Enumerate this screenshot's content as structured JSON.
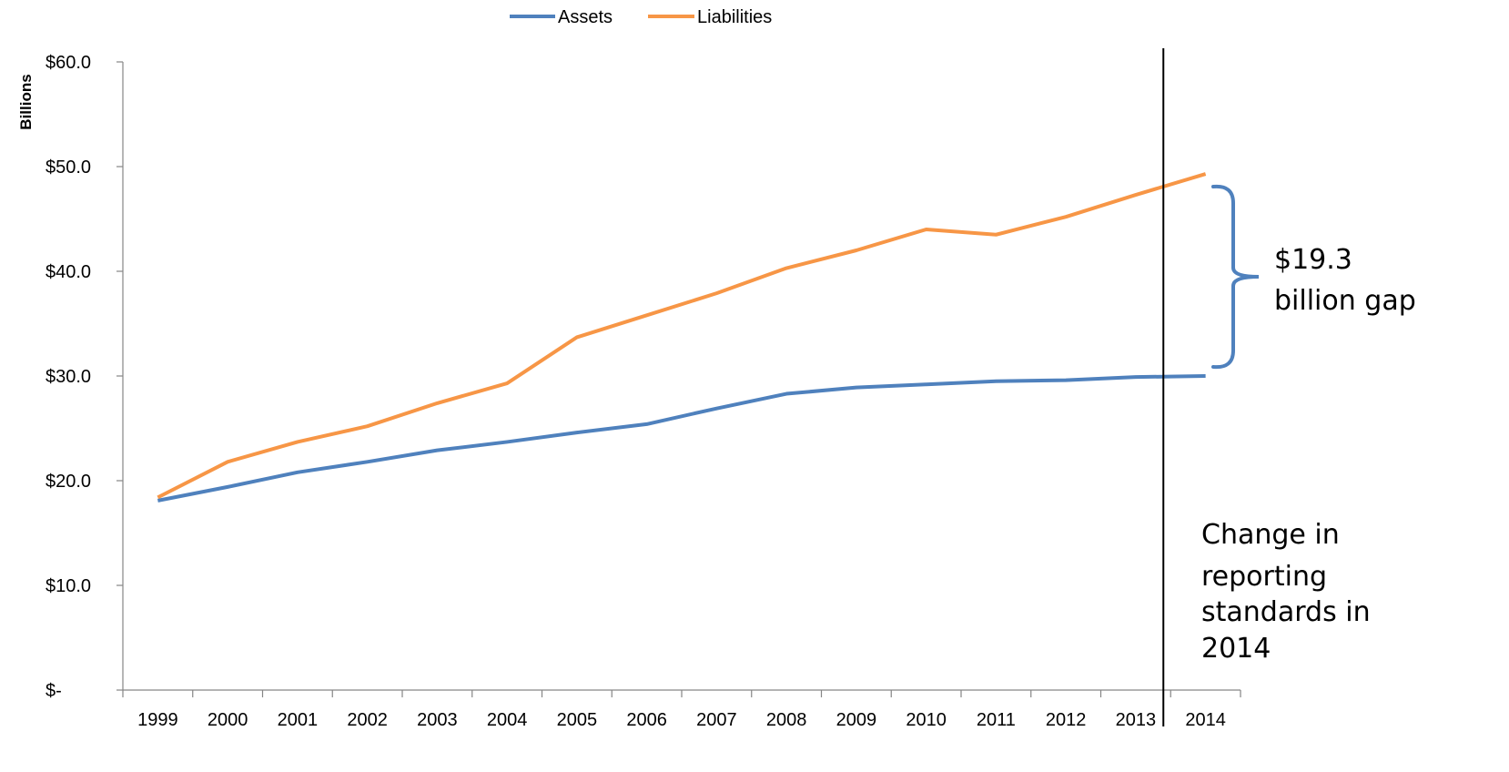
{
  "chart_data": {
    "type": "line",
    "title": "",
    "xlabel": "",
    "ylabel": "Billions",
    "categories": [
      "1999",
      "2000",
      "2001",
      "2002",
      "2003",
      "2004",
      "2005",
      "2006",
      "2007",
      "2008",
      "2009",
      "2010",
      "2011",
      "2012",
      "2013",
      "2014"
    ],
    "series": [
      {
        "name": "Assets",
        "color": "#4F81BD",
        "values": [
          18.1,
          19.4,
          20.8,
          21.8,
          22.9,
          23.7,
          24.6,
          25.4,
          26.9,
          28.3,
          28.9,
          29.2,
          29.5,
          29.6,
          29.9,
          30.0
        ]
      },
      {
        "name": "Liabilities",
        "color": "#F79646",
        "values": [
          18.4,
          21.8,
          23.7,
          25.2,
          27.4,
          29.3,
          33.7,
          35.8,
          37.9,
          40.3,
          42.0,
          44.0,
          43.5,
          45.2,
          47.3,
          49.3
        ]
      }
    ],
    "ylim": [
      0,
      60
    ],
    "yticks": [
      "$-",
      "$10.0",
      "$20.0",
      "$30.0",
      "$40.0",
      "$50.0",
      "$60.0"
    ],
    "legend_position": "top",
    "grid": false,
    "annotations": {
      "gap_label_line1": "$19.3",
      "gap_label_line2": "billion gap",
      "change_note": [
        "Change in",
        "reporting",
        "standards in",
        "2014"
      ],
      "change_year": "2014"
    }
  }
}
